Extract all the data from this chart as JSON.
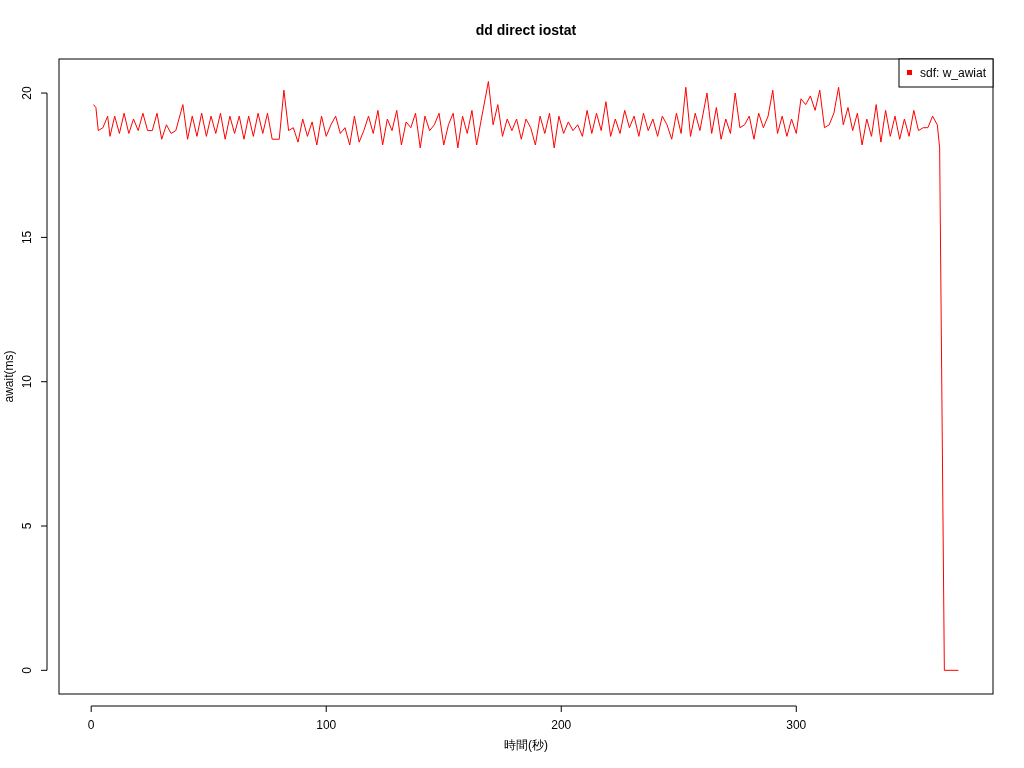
{
  "chart_data": {
    "type": "line",
    "title": "dd direct iostat",
    "xlabel": "時間(秒)",
    "ylabel": "await(ms)",
    "xlim": [
      -13.7,
      383.7
    ],
    "ylim": [
      -0.82,
      21.18
    ],
    "xticks": [
      0,
      100,
      200,
      300
    ],
    "yticks": [
      0,
      5,
      10,
      15,
      20
    ],
    "grid": false,
    "legend": "top right",
    "marker": "none",
    "line_style": "solid",
    "series": [
      {
        "name": "sdf: w_awiat",
        "color": "#ff0000",
        "x": [
          1,
          2,
          3,
          5,
          7,
          8,
          10,
          12,
          14,
          16,
          18,
          20,
          22,
          24,
          26,
          28,
          30,
          32,
          34,
          36,
          39,
          41,
          43,
          45,
          47,
          49,
          51,
          53,
          55,
          57,
          59,
          61,
          63,
          65,
          67,
          69,
          71,
          73,
          75,
          77,
          80,
          82,
          84,
          86,
          88,
          90,
          92,
          94,
          96,
          98,
          100,
          102,
          104,
          106,
          108,
          110,
          112,
          114,
          116,
          118,
          120,
          122,
          124,
          126,
          128,
          130,
          132,
          134,
          136,
          138,
          140,
          142,
          144,
          146,
          148,
          150,
          152,
          154,
          156,
          158,
          160,
          162,
          164,
          166,
          169,
          171,
          173,
          175,
          177,
          179,
          181,
          183,
          185,
          187,
          189,
          191,
          193,
          195,
          197,
          199,
          201,
          203,
          205,
          207,
          209,
          211,
          213,
          215,
          217,
          219,
          221,
          223,
          225,
          227,
          229,
          231,
          233,
          235,
          237,
          239,
          241,
          243,
          245,
          247,
          249,
          251,
          253,
          255,
          257,
          259,
          262,
          264,
          266,
          268,
          270,
          272,
          274,
          276,
          278,
          280,
          282,
          284,
          286,
          288,
          290,
          292,
          294,
          296,
          298,
          300,
          302,
          304,
          306,
          308,
          310,
          312,
          314,
          316,
          318,
          320,
          322,
          324,
          326,
          328,
          330,
          332,
          334,
          336,
          338,
          340,
          342,
          344,
          346,
          348,
          350,
          352,
          354,
          356,
          358,
          360,
          361,
          363,
          369
        ],
        "values": [
          19.6,
          19.5,
          18.7,
          18.8,
          19.2,
          18.5,
          19.2,
          18.6,
          19.3,
          18.6,
          19.1,
          18.7,
          19.3,
          18.7,
          18.7,
          19.3,
          18.4,
          18.9,
          18.6,
          18.7,
          19.6,
          18.4,
          19.2,
          18.5,
          19.3,
          18.5,
          19.2,
          18.6,
          19.3,
          18.4,
          19.2,
          18.6,
          19.2,
          18.4,
          19.2,
          18.5,
          19.3,
          18.6,
          19.3,
          18.4,
          18.4,
          20.1,
          18.7,
          18.8,
          18.3,
          19.1,
          18.5,
          19.0,
          18.2,
          19.2,
          18.5,
          18.9,
          19.2,
          18.6,
          18.8,
          18.2,
          19.2,
          18.3,
          18.7,
          19.2,
          18.6,
          19.4,
          18.2,
          19.1,
          18.7,
          19.4,
          18.2,
          19.0,
          18.8,
          19.3,
          18.1,
          19.2,
          18.7,
          18.9,
          19.3,
          18.2,
          18.9,
          19.3,
          18.1,
          19.2,
          18.6,
          19.4,
          18.2,
          19.1,
          20.4,
          18.9,
          19.6,
          18.5,
          19.1,
          18.7,
          19.1,
          18.4,
          19.1,
          18.8,
          18.2,
          19.2,
          18.6,
          19.3,
          18.1,
          19.2,
          18.6,
          19.0,
          18.7,
          18.9,
          18.5,
          19.4,
          18.6,
          19.3,
          18.7,
          19.7,
          18.5,
          19.1,
          18.6,
          19.4,
          18.8,
          19.2,
          18.5,
          19.3,
          18.7,
          19.1,
          18.5,
          19.2,
          18.9,
          18.4,
          19.3,
          18.6,
          20.2,
          18.5,
          19.3,
          18.7,
          20.0,
          18.6,
          19.5,
          18.4,
          19.1,
          18.6,
          20.0,
          18.8,
          18.9,
          19.2,
          18.4,
          19.3,
          18.8,
          19.2,
          20.1,
          18.6,
          19.2,
          18.5,
          19.1,
          18.6,
          19.8,
          19.6,
          19.9,
          19.4,
          20.1,
          18.8,
          18.9,
          19.3,
          20.2,
          18.9,
          19.5,
          18.7,
          19.3,
          18.2,
          19.1,
          18.5,
          19.6,
          18.3,
          19.4,
          18.5,
          19.2,
          18.4,
          19.1,
          18.5,
          19.4,
          18.7,
          18.8,
          18.8,
          19.2,
          18.9,
          18.1,
          0,
          0
        ]
      }
    ]
  }
}
